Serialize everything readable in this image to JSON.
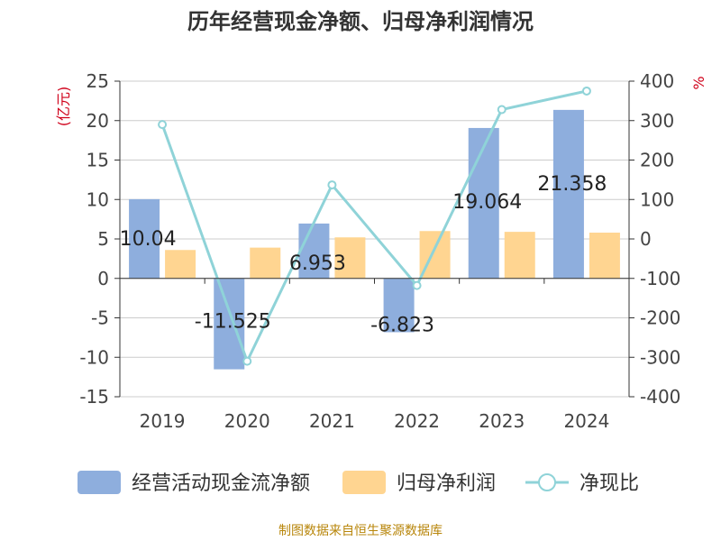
{
  "title": "历年经营现金净额、归母净利润情况",
  "source": "制图数据来自恒生聚源数据库",
  "colors": {
    "operating_cash": "#8eaedd",
    "net_profit": "#ffd591",
    "ratio_line": "#8fd3d8",
    "axis_unit": "#d0021b",
    "axis": "#333333",
    "grid": "#cccccc",
    "source": "#b8860b"
  },
  "chart_data": {
    "type": "bar",
    "title": "历年经营现金净额、归母净利润情况",
    "categories": [
      "2019",
      "2020",
      "2021",
      "2022",
      "2023",
      "2024"
    ],
    "series": [
      {
        "name": "经营活动现金流净额",
        "type": "bar",
        "axis": "left",
        "values": [
          10.04,
          -11.525,
          6.953,
          -6.823,
          19.064,
          21.358
        ],
        "labels": [
          "10.04",
          "-11.525",
          "6.953",
          "-6.823",
          "19.064",
          "21.358"
        ]
      },
      {
        "name": "归母净利润",
        "type": "bar",
        "axis": "left",
        "values": [
          3.6,
          3.9,
          5.2,
          6.0,
          5.9,
          5.8
        ]
      },
      {
        "name": "净现比",
        "type": "line",
        "axis": "right",
        "values": [
          290,
          -310,
          137,
          -118,
          328,
          375
        ]
      }
    ],
    "ylabel_left": "(亿元)",
    "ylabel_right": "%",
    "ylim_left": [
      -15,
      25
    ],
    "ylim_right": [
      -400,
      400
    ],
    "left_ticks": [
      "25",
      "20",
      "15",
      "10",
      "5",
      "0",
      "-5",
      "-10",
      "-15"
    ],
    "right_ticks": [
      "400",
      "300",
      "200",
      "100",
      "0",
      "-100",
      "-200",
      "-300",
      "-400"
    ],
    "grid": true,
    "legend_position": "bottom"
  }
}
